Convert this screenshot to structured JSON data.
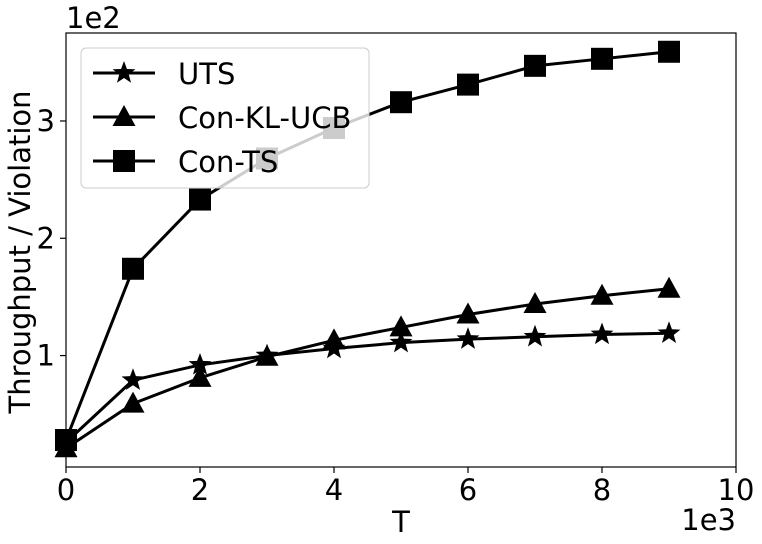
{
  "chart_data": {
    "type": "line",
    "xlabel": "T",
    "ylabel": "Throughput / Violation",
    "x_scale_label": "1e3",
    "y_scale_label": "1e2",
    "xlim": [
      0,
      10
    ],
    "ylim": [
      0.05,
      3.75
    ],
    "x_ticks": [
      0,
      2,
      4,
      6,
      8,
      10
    ],
    "x_tick_labels": [
      "0",
      "2",
      "4",
      "6",
      "8",
      "10"
    ],
    "y_ticks": [
      1,
      2,
      3
    ],
    "y_tick_labels": [
      "1",
      "2",
      "3"
    ],
    "grid": false,
    "legend": "top-left",
    "x": [
      0,
      1,
      2,
      3,
      4,
      5,
      6,
      7,
      8,
      9
    ],
    "series": [
      {
        "name": "UTS",
        "marker": "star",
        "color": "#000000",
        "values": [
          0.26,
          0.79,
          0.92,
          1.0,
          1.06,
          1.11,
          1.14,
          1.16,
          1.18,
          1.19
        ]
      },
      {
        "name": "Con-KL-UCB",
        "marker": "triangle",
        "color": "#000000",
        "values": [
          0.21,
          0.59,
          0.81,
          0.99,
          1.13,
          1.24,
          1.35,
          1.44,
          1.51,
          1.57
        ]
      },
      {
        "name": "Con-TS",
        "marker": "square",
        "color": "#000000",
        "values": [
          0.28,
          1.74,
          2.33,
          2.68,
          2.94,
          3.16,
          3.31,
          3.47,
          3.53,
          3.59
        ]
      }
    ]
  }
}
